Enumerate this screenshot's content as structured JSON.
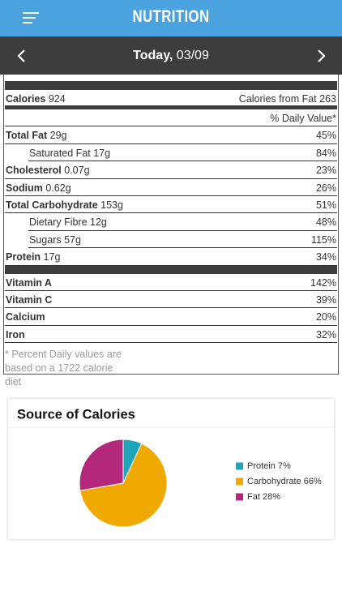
{
  "header": {
    "title": "NUTRITION"
  },
  "date_bar": {
    "label": "Today,",
    "date": "03/09"
  },
  "label": {
    "calories": {
      "label": "Calories",
      "value": "924"
    },
    "calories_from_fat": {
      "label": "Calories from Fat",
      "value": "263"
    },
    "daily_value_heading": "% Daily Value*",
    "nutrients": [
      {
        "label": "Total Fat",
        "amount": "29g",
        "dv": "45%",
        "sub": [
          {
            "label": "Saturated Fat",
            "amount": "17g",
            "dv": "84%"
          }
        ]
      },
      {
        "label": "Cholesterol",
        "amount": "0.07g",
        "dv": "23%"
      },
      {
        "label": "Sodium",
        "amount": "0.62g",
        "dv": "26%"
      },
      {
        "label": "Total Carbohydrate",
        "amount": "153g",
        "dv": "51%",
        "sub": [
          {
            "label": "Dietary Fibre",
            "amount": "12g",
            "dv": "48%"
          },
          {
            "label": "Sugars",
            "amount": "57g",
            "dv": "115%"
          }
        ]
      },
      {
        "label": "Protein",
        "amount": "17g",
        "dv": "34%"
      }
    ],
    "vitamins": [
      {
        "label": "Vitamin A",
        "dv": "142%"
      },
      {
        "label": "Vitamin C",
        "dv": "39%"
      },
      {
        "label": "Calcium",
        "dv": "20%"
      },
      {
        "label": "Iron",
        "dv": "32%"
      }
    ],
    "footnote": "* Percent Daily values are based on a 1722 calorie diet"
  },
  "chart_data": {
    "type": "pie",
    "title": "Source of Calories",
    "categories": [
      "Protein",
      "Carbohydrate",
      "Fat"
    ],
    "values": [
      7,
      66,
      28
    ],
    "value_labels": [
      "7%",
      "66%",
      "28%"
    ],
    "colors": [
      "#1ea5b8",
      "#f0a900",
      "#b3287b"
    ]
  }
}
